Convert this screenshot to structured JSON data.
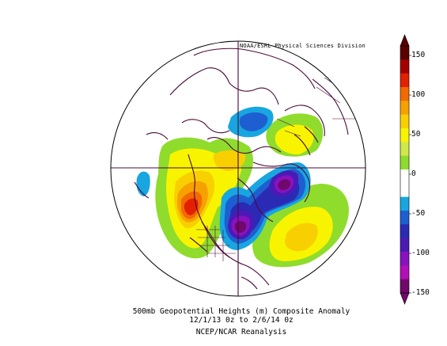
{
  "credit": "NOAA/ESRL Physical Sciences Division",
  "caption": {
    "line1": "500mb Geopotential Heights (m)   Composite Anomaly",
    "line2": "12/1/13 0z  to 2/6/14 0z",
    "line3": "NCEP/NCAR Reanalysis"
  },
  "colorbar": {
    "ticks": [
      "150",
      "100",
      "50",
      "0",
      "-50",
      "-100",
      "-150"
    ],
    "colors": [
      "#5a0000",
      "#a50000",
      "#e32000",
      "#f26a00",
      "#f7a100",
      "#f8cf00",
      "#f8f400",
      "#cfe84a",
      "#8fdc2c",
      "#ffffff",
      "#ffffff",
      "#18a6e0",
      "#1d5fd0",
      "#2a2ab5",
      "#4b1ab5",
      "#8812c0",
      "#b10fb8",
      "#71086b"
    ]
  },
  "map": {
    "projection": "north-polar-stereographic",
    "fill_colors": {
      "yellow": "#f8f400",
      "gold": "#f8cf00",
      "orange": "#f7a100",
      "dark-orange": "#f26a00",
      "red": "#e32000",
      "light-green": "#cfe84a",
      "green": "#8fdc2c",
      "light-blue": "#18a6e0",
      "blue": "#1d5fd0",
      "indigo": "#2a2ab5",
      "violet": "#4b1ab5",
      "purple": "#8812c0",
      "dark-purple": "#71086b",
      "coastline": "#4a0a3a"
    }
  }
}
